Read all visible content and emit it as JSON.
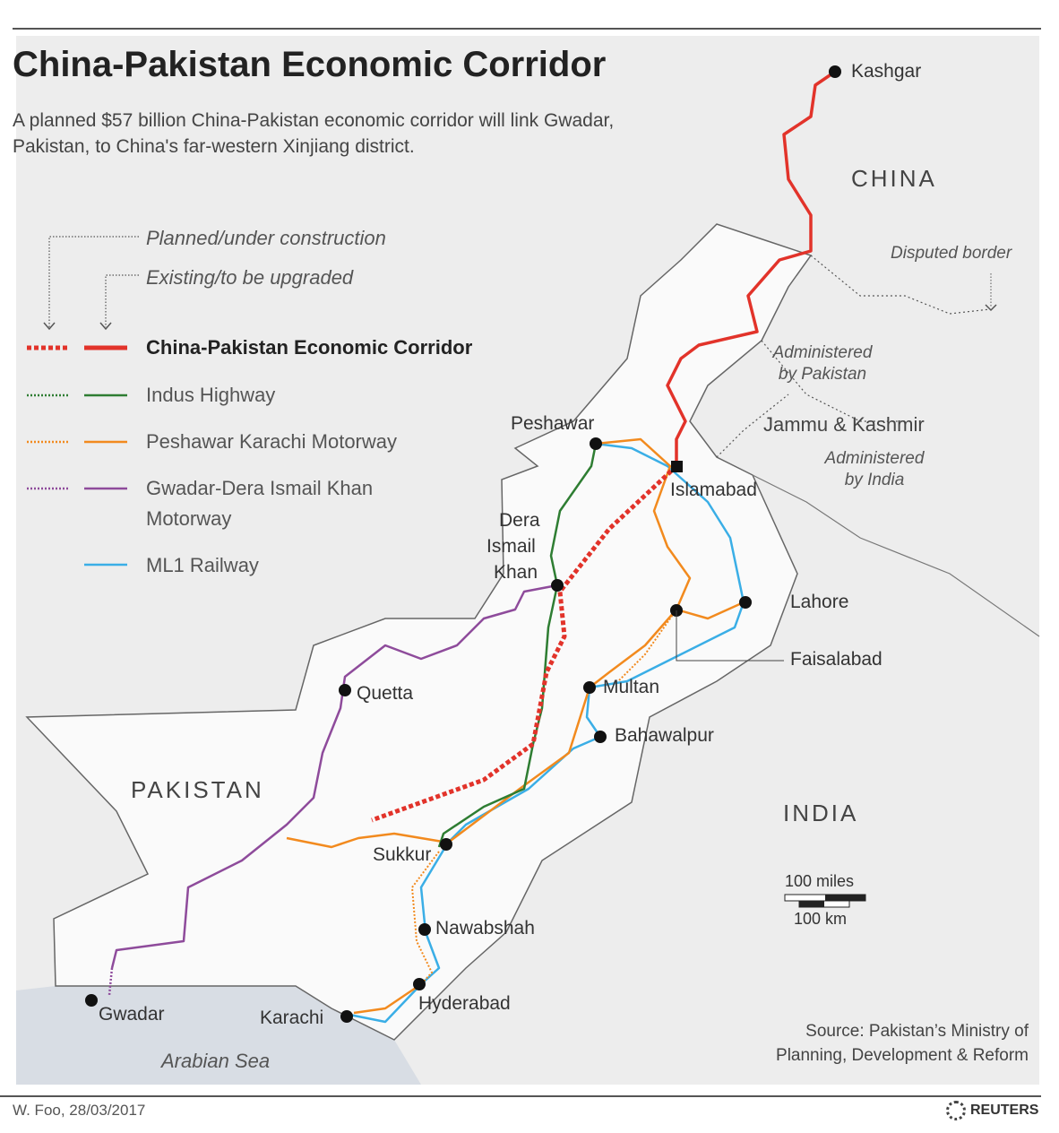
{
  "header": {
    "title": "China-Pakistan Economic Corridor",
    "subtitle": "A planned $57 billion China-Pakistan economic corridor will link Gwadar, Pakistan, to China's far-western Xinjiang district."
  },
  "legend": {
    "planned_label": "Planned/under construction",
    "existing_label": "Existing/to be upgraded",
    "items": [
      {
        "label": "China-Pakistan  Economic Corridor",
        "color": "#e2332a"
      },
      {
        "label": "Indus Highway",
        "color": "#2e7d32"
      },
      {
        "label": "Peshawar Karachi Motorway",
        "color": "#f28a1e"
      },
      {
        "label": "Gwadar-Dera Ismail Khan",
        "label2": "Motorway",
        "color": "#8e4b9b"
      },
      {
        "label": "ML1 Railway",
        "color": "#3aaee6"
      }
    ]
  },
  "countries": {
    "china": "CHINA",
    "pakistan": "PAKISTAN",
    "india": "INDIA"
  },
  "regions": {
    "disputed": "Disputed border",
    "admin_pak": "Administered by Pakistan",
    "jk": "Jammu & Kashmir",
    "admin_india": "Administered by India",
    "sea": "Arabian Sea"
  },
  "cities": {
    "kashgar": "Kashgar",
    "peshawar": "Peshawar",
    "islamabad": "Islamabad",
    "dik1": "Dera",
    "dik2": "Ismail",
    "dik3": "Khan",
    "lahore": "Lahore",
    "faisalabad": "Faisalabad",
    "multan": "Multan",
    "bahawalpur": "Bahawalpur",
    "quetta": "Quetta",
    "sukkur": "Sukkur",
    "nawabshah": "Nawabshah",
    "hyderabad": "Hyderabad",
    "karachi": "Karachi",
    "gwadar": "Gwadar"
  },
  "scale": {
    "miles": "100 miles",
    "km": "100 km"
  },
  "source": {
    "line1": "Source: Pakistan’s Ministry of",
    "line2": "Planning, Development & Reform"
  },
  "footer": {
    "credit": "W. Foo, 28/03/2017",
    "brand": "REUTERS"
  }
}
